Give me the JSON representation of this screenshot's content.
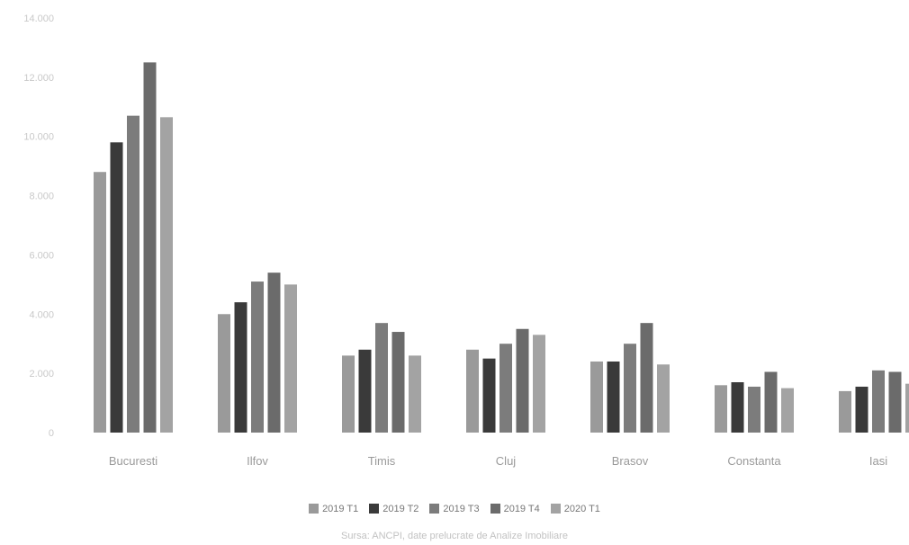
{
  "chart_data": {
    "type": "bar",
    "categories": [
      "Bucuresti",
      "Ilfov",
      "Timis",
      "Cluj",
      "Brasov",
      "Constanta",
      "Iasi"
    ],
    "series": [
      {
        "name": "2019 T1",
        "color": "#9a9a9a",
        "values": [
          8800,
          4000,
          2600,
          2800,
          2400,
          1600,
          1400
        ]
      },
      {
        "name": "2019 T2",
        "color": "#3a3a3a",
        "values": [
          9800,
          4400,
          2800,
          2500,
          2400,
          1700,
          1550
        ]
      },
      {
        "name": "2019 T3",
        "color": "#7c7c7c",
        "values": [
          10700,
          5100,
          3700,
          3000,
          3000,
          1550,
          2100
        ]
      },
      {
        "name": "2019 T4",
        "color": "#6b6b6b",
        "values": [
          12500,
          5400,
          3400,
          3500,
          3700,
          2050,
          2050
        ]
      },
      {
        "name": "2020 T1",
        "color": "#a3a3a3",
        "values": [
          10650,
          5000,
          2600,
          3300,
          2300,
          1500,
          1650
        ]
      }
    ],
    "ylim": [
      0,
      14000
    ],
    "yticks": [
      "0",
      "2.000",
      "4.000",
      "6.000",
      "8.000",
      "10.000",
      "12.000",
      "14.000"
    ],
    "grid": false,
    "legend_position": "bottom"
  },
  "source_text": "Sursa: ANCPI, date prelucrate de Analize Imobiliare"
}
